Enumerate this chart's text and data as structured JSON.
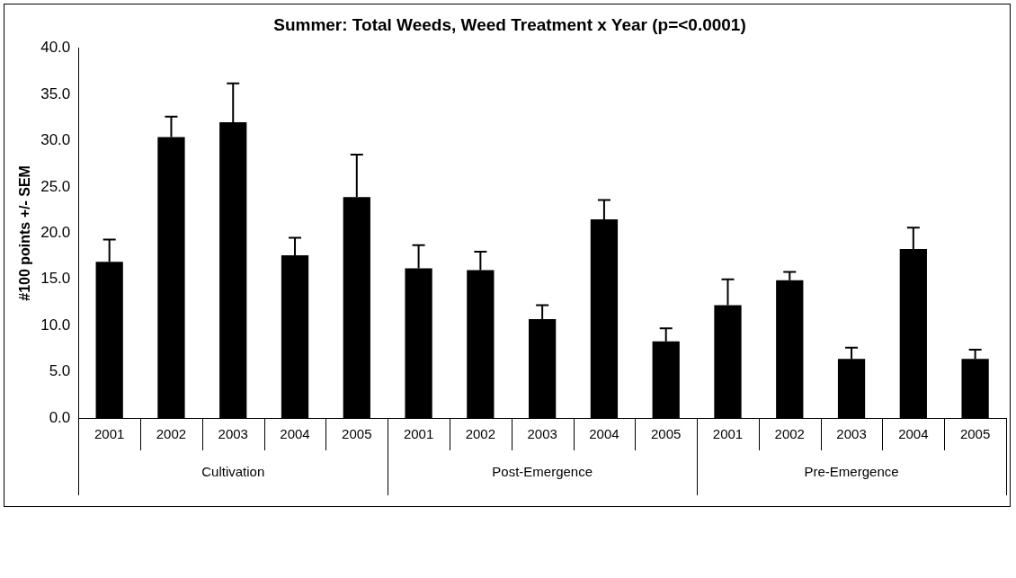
{
  "chart_data": {
    "type": "bar",
    "title": "Summer: Total Weeds, Weed Treatment x Year (p=<0.0001)",
    "ylabel": "#100 points +/- SEM",
    "categories": [
      "2001",
      "2002",
      "2003",
      "2004",
      "2005",
      "2001",
      "2002",
      "2003",
      "2004",
      "2005",
      "2001",
      "2002",
      "2003",
      "2004",
      "2005"
    ],
    "values": [
      16.9,
      30.4,
      32.0,
      17.6,
      23.9,
      16.2,
      16.0,
      10.7,
      21.5,
      8.3,
      12.2,
      14.9,
      6.4,
      18.3,
      6.4
    ],
    "errors": [
      [
        16.9,
        19.3
      ],
      [
        30.4,
        32.6
      ],
      [
        32.0,
        36.2
      ],
      [
        17.6,
        19.5
      ],
      [
        23.9,
        28.5
      ],
      [
        16.2,
        18.7
      ],
      [
        16.0,
        18.0
      ],
      [
        10.7,
        12.2
      ],
      [
        21.5,
        23.6
      ],
      [
        8.3,
        9.7
      ],
      [
        12.2,
        15.0
      ],
      [
        14.9,
        15.8
      ],
      [
        6.4,
        7.6
      ],
      [
        18.3,
        20.6
      ],
      [
        6.4,
        7.4
      ]
    ],
    "color": "#000000",
    "annotations": [
      "Cultivation",
      "Post-Emergence",
      "Pre-Emergence"
    ],
    "ylim": [
      0,
      40
    ],
    "yticks": [
      {
        "value": 0,
        "label": "0.0"
      },
      {
        "value": 5,
        "label": "5.0"
      },
      {
        "value": 10,
        "label": "10.0"
      },
      {
        "value": 15,
        "label": "15.0"
      },
      {
        "value": 20,
        "label": "20.0"
      },
      {
        "value": 25,
        "label": "25.0"
      },
      {
        "value": 30,
        "label": "30.0"
      },
      {
        "value": 35,
        "label": "35.0"
      },
      {
        "value": 40,
        "label": "40.0"
      }
    ],
    "grid": false,
    "legend": false
  }
}
